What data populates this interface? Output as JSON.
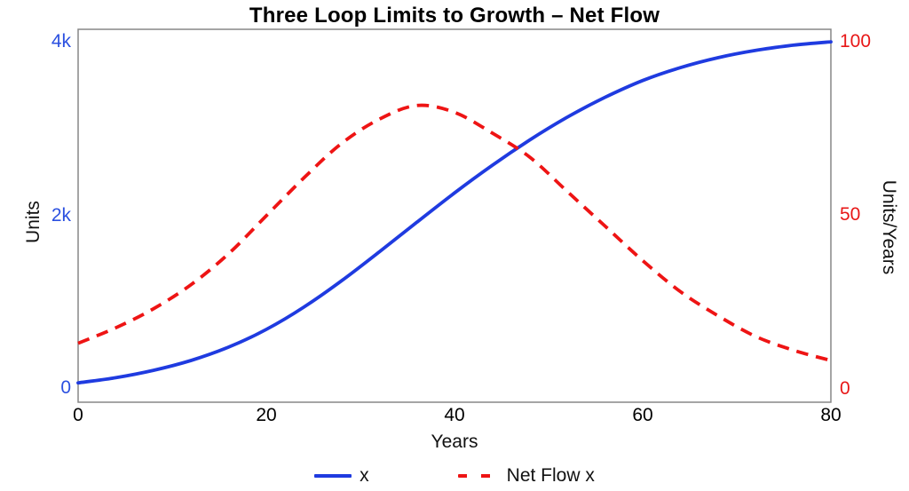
{
  "chart_data": {
    "type": "line",
    "title": "Three Loop Limits to Growth – Net Flow",
    "xlabel": "Years",
    "ylabel_left": "Units",
    "ylabel_right": "Units/Years",
    "grid": false,
    "legend_position": "bottom-center",
    "x": [
      0,
      4,
      8,
      12,
      16,
      20,
      24,
      28,
      32,
      36,
      40,
      44,
      48,
      52,
      56,
      60,
      64,
      68,
      72,
      76,
      80
    ],
    "xlim": [
      0,
      80
    ],
    "xticks": [
      "0",
      "20",
      "40",
      "60",
      "80"
    ],
    "yticks_left": [
      "4k",
      "2k",
      "0"
    ],
    "yticks_right": [
      "100",
      "50",
      "0"
    ],
    "ylim_left": [
      -165,
      4165
    ],
    "ylim_right": [
      -4.1,
      104.1
    ],
    "series": [
      {
        "name": "x",
        "axis": "left",
        "style": "solid",
        "color": "#1f3be0",
        "values": [
          60,
          120,
          205,
          320,
          475,
          680,
          940,
          1245,
          1580,
          1925,
          2265,
          2585,
          2880,
          3145,
          3375,
          3570,
          3720,
          3835,
          3920,
          3980,
          4020
        ]
      },
      {
        "name": "Net Flow x",
        "axis": "right",
        "style": "dashed",
        "color": "#ee1414",
        "values": [
          13,
          17.5,
          23,
          30,
          39,
          50,
          61,
          71,
          78,
          82,
          80,
          74,
          67,
          57,
          47,
          37,
          28,
          21,
          15,
          11,
          8
        ]
      }
    ]
  },
  "colors": {
    "left_axis_ticks": "#2b50e0",
    "right_axis_ticks": "#e81717",
    "frame": "#878787",
    "title_text": "#000000"
  }
}
